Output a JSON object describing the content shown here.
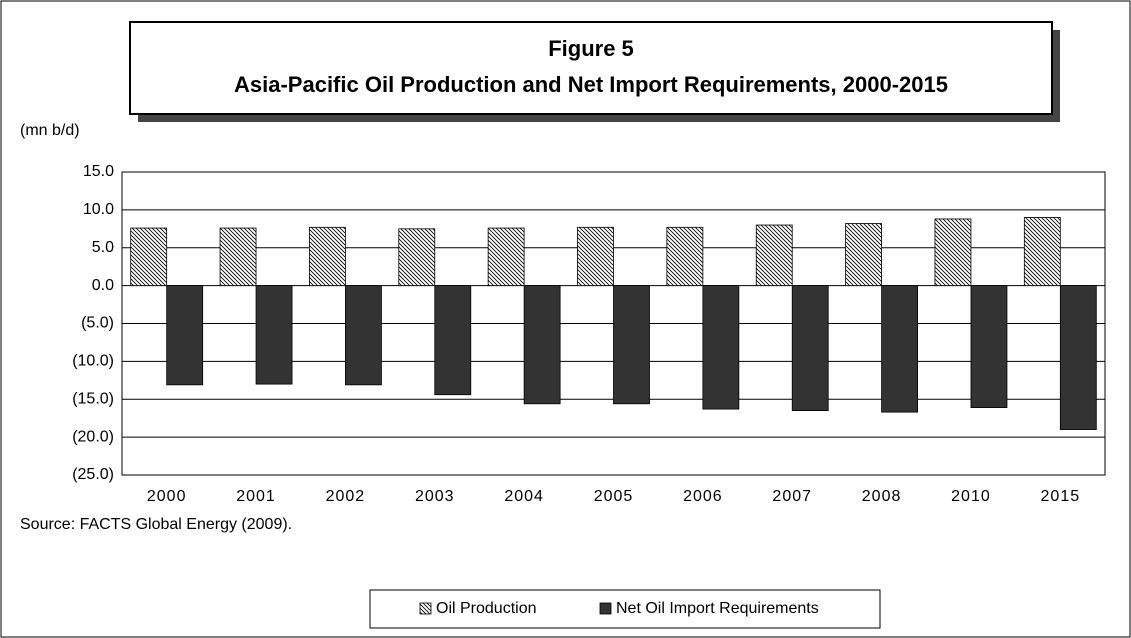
{
  "chart_data": {
    "type": "bar",
    "title": "Figure 5",
    "subtitle": "Asia-Pacific Oil Production and Net Import Requirements, 2000-2015",
    "y_label": "(mn b/d)",
    "source": "Source: FACTS Global Energy (2009).",
    "categories": [
      "2000",
      "2001",
      "2002",
      "2003",
      "2004",
      "2005",
      "2006",
      "2007",
      "2008",
      "2010",
      "2015"
    ],
    "series": [
      {
        "name": "Oil Production",
        "color": "#000000",
        "pattern": "hatch",
        "values": [
          7.6,
          7.6,
          7.7,
          7.5,
          7.6,
          7.7,
          7.7,
          8.0,
          8.2,
          8.8,
          9.0
        ]
      },
      {
        "name": "Net Oil Import Requirements",
        "color": "#333333",
        "values": [
          -13.1,
          -13.0,
          -13.1,
          -14.4,
          -15.6,
          -15.6,
          -16.3,
          -16.5,
          -16.7,
          -16.1,
          -19.0
        ]
      }
    ],
    "ylim": [
      -25,
      15
    ],
    "yticks": [
      {
        "value": 15,
        "label": "15.0"
      },
      {
        "value": 10,
        "label": "10.0"
      },
      {
        "value": 5,
        "label": "5.0"
      },
      {
        "value": 0,
        "label": "0.0"
      },
      {
        "value": -5,
        "label": "(5.0)"
      },
      {
        "value": -10,
        "label": "(10.0)"
      },
      {
        "value": -15,
        "label": "(15.0)"
      },
      {
        "value": -20,
        "label": "(20.0)"
      },
      {
        "value": -25,
        "label": "(25.0)"
      }
    ],
    "grid": true,
    "legend": "bottom"
  }
}
